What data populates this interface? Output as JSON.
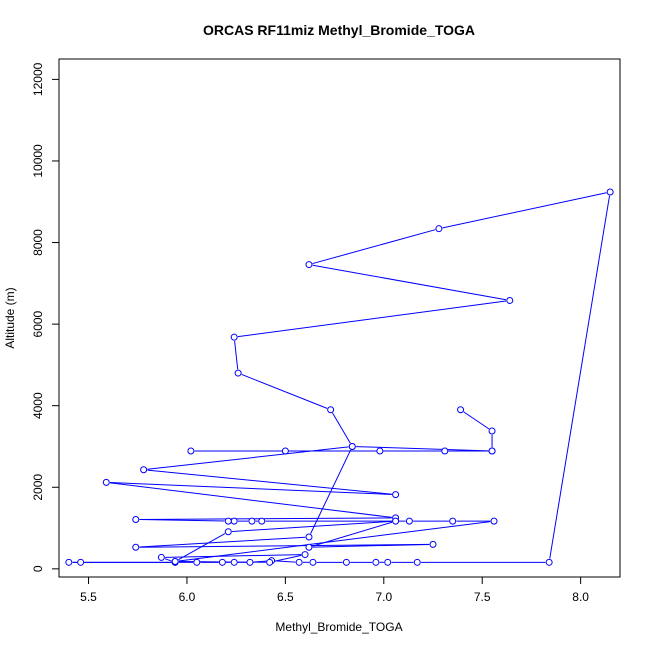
{
  "chart_data": {
    "type": "line",
    "title": "ORCAS RF11miz Methyl_Bromide_TOGA",
    "xlabel": "Methyl_Bromide_TOGA",
    "ylabel": "Altitude (m)",
    "xlim": [
      5.35,
      8.2
    ],
    "ylim": [
      -200,
      12500
    ],
    "xticks": [
      5.5,
      6.0,
      6.5,
      7.0,
      7.5,
      8.0
    ],
    "xtick_labels": [
      "5.5",
      "6.0",
      "6.5",
      "7.0",
      "7.5",
      "8.0"
    ],
    "yticks": [
      0,
      2000,
      4000,
      6000,
      8000,
      10000,
      12000
    ],
    "ytick_labels": [
      "0",
      "2000",
      "4000",
      "6000",
      "8000",
      "10000",
      "12000"
    ],
    "grid": false,
    "series": [
      {
        "color": "#0000ff",
        "marker": "open-circle",
        "points": [
          [
            7.39,
            3900
          ],
          [
            7.55,
            3380
          ],
          [
            7.55,
            2890
          ],
          [
            7.31,
            2890
          ],
          [
            6.98,
            2890
          ],
          [
            6.5,
            2890
          ],
          [
            6.02,
            2890
          ],
          [
            7.55,
            2890
          ],
          [
            6.84,
            3000
          ],
          [
            6.73,
            3900
          ],
          [
            6.26,
            4800
          ],
          [
            6.24,
            5680
          ],
          [
            7.64,
            6580
          ],
          [
            6.62,
            7460
          ],
          [
            7.28,
            8340
          ],
          [
            8.15,
            9240
          ],
          [
            7.84,
            160
          ],
          [
            7.17,
            160
          ],
          [
            7.02,
            160
          ],
          [
            6.96,
            160
          ],
          [
            6.81,
            160
          ],
          [
            6.64,
            160
          ],
          [
            6.57,
            160
          ],
          [
            6.43,
            200
          ],
          [
            6.32,
            160
          ],
          [
            6.24,
            160
          ],
          [
            6.18,
            160
          ],
          [
            6.05,
            160
          ],
          [
            5.94,
            160
          ],
          [
            5.46,
            160
          ],
          [
            5.4,
            160
          ],
          [
            5.94,
            160
          ],
          [
            5.87,
            280
          ],
          [
            6.6,
            350
          ],
          [
            6.42,
            160
          ],
          [
            5.94,
            180
          ],
          [
            7.56,
            1170
          ],
          [
            7.35,
            1170
          ],
          [
            7.13,
            1170
          ],
          [
            6.38,
            1170
          ],
          [
            6.33,
            1170
          ],
          [
            6.24,
            1170
          ],
          [
            6.21,
            1170
          ],
          [
            5.74,
            1210
          ],
          [
            7.06,
            1250
          ],
          [
            5.59,
            2120
          ],
          [
            7.06,
            1820
          ],
          [
            5.78,
            2430
          ],
          [
            6.84,
            3000
          ],
          [
            6.62,
            780
          ],
          [
            5.74,
            530
          ],
          [
            7.25,
            600
          ],
          [
            6.62,
            530
          ],
          [
            7.06,
            1170
          ],
          [
            6.21,
            910
          ],
          [
            5.94,
            180
          ]
        ]
      }
    ]
  }
}
